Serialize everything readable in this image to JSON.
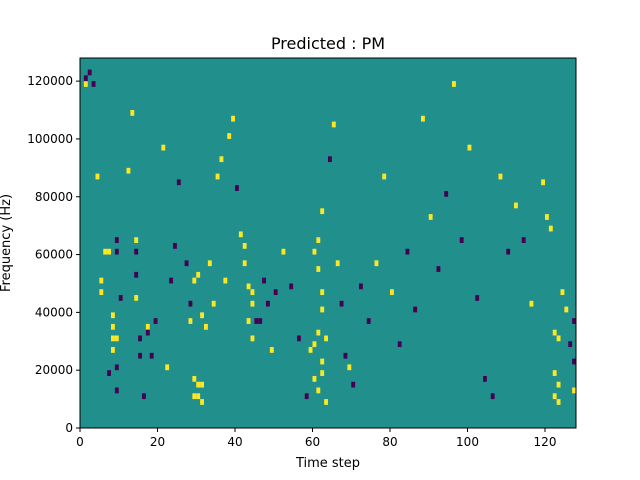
{
  "chart_data": {
    "type": "heatmap",
    "title": "Predicted : PM",
    "xlabel": "Time step",
    "ylabel": "Frequency (Hz)",
    "xlim": [
      0,
      128
    ],
    "ylim": [
      0,
      128000
    ],
    "xticks": [
      "0",
      "20",
      "40",
      "60",
      "80",
      "100",
      "120"
    ],
    "yticks": [
      "0",
      "20000",
      "40000",
      "60000",
      "80000",
      "100000",
      "120000"
    ],
    "grid": false,
    "legend": "none",
    "colormap": "viridis",
    "value_levels": [
      0,
      1,
      2
    ],
    "colors": {
      "background_level_1": "#21908d",
      "low_level_0": "#440154",
      "high_level_2": "#fde725"
    },
    "cells": [
      [
        1,
        118000,
        2
      ],
      [
        1,
        120000,
        0
      ],
      [
        2,
        122000,
        0
      ],
      [
        3,
        118000,
        0
      ],
      [
        6,
        60000,
        2
      ],
      [
        7,
        60000,
        2
      ],
      [
        8,
        38000,
        2
      ],
      [
        8,
        34000,
        2
      ],
      [
        8,
        30000,
        2
      ],
      [
        9,
        30000,
        2
      ],
      [
        8,
        26000,
        2
      ],
      [
        9,
        20000,
        0
      ],
      [
        9,
        60000,
        0
      ],
      [
        9,
        64000,
        0
      ],
      [
        10,
        44000,
        0
      ],
      [
        4,
        86000,
        2
      ],
      [
        5,
        50000,
        2
      ],
      [
        5,
        46000,
        2
      ],
      [
        7,
        18000,
        0
      ],
      [
        9,
        12000,
        0
      ],
      [
        12,
        88000,
        2
      ],
      [
        13,
        108000,
        2
      ],
      [
        14,
        64000,
        2
      ],
      [
        14,
        60000,
        0
      ],
      [
        14,
        52000,
        0
      ],
      [
        14,
        44000,
        2
      ],
      [
        15,
        30000,
        0
      ],
      [
        15,
        24000,
        0
      ],
      [
        16,
        10000,
        0
      ],
      [
        17,
        34000,
        2
      ],
      [
        17,
        32000,
        0
      ],
      [
        18,
        24000,
        0
      ],
      [
        19,
        36000,
        0
      ],
      [
        21,
        96000,
        2
      ],
      [
        22,
        20000,
        2
      ],
      [
        23,
        50000,
        0
      ],
      [
        24,
        62000,
        0
      ],
      [
        25,
        84000,
        0
      ],
      [
        27,
        56000,
        0
      ],
      [
        28,
        42000,
        0
      ],
      [
        29,
        16000,
        2
      ],
      [
        29,
        10000,
        2
      ],
      [
        30,
        14000,
        2
      ],
      [
        30,
        10000,
        2
      ],
      [
        31,
        14000,
        2
      ],
      [
        31,
        8000,
        2
      ],
      [
        28,
        36000,
        2
      ],
      [
        29,
        50000,
        2
      ],
      [
        30,
        52000,
        2
      ],
      [
        31,
        38000,
        2
      ],
      [
        32,
        34000,
        2
      ],
      [
        33,
        56000,
        2
      ],
      [
        34,
        42000,
        2
      ],
      [
        35,
        86000,
        2
      ],
      [
        36,
        92000,
        2
      ],
      [
        37,
        50000,
        2
      ],
      [
        38,
        100000,
        2
      ],
      [
        39,
        106000,
        2
      ],
      [
        40,
        82000,
        0
      ],
      [
        41,
        66000,
        2
      ],
      [
        42,
        62000,
        2
      ],
      [
        42,
        56000,
        2
      ],
      [
        43,
        48000,
        2
      ],
      [
        44,
        46000,
        2
      ],
      [
        44,
        42000,
        2
      ],
      [
        43,
        36000,
        2
      ],
      [
        44,
        30000,
        2
      ],
      [
        45,
        36000,
        0
      ],
      [
        46,
        36000,
        0
      ],
      [
        47,
        50000,
        0
      ],
      [
        48,
        42000,
        0
      ],
      [
        49,
        26000,
        2
      ],
      [
        50,
        46000,
        0
      ],
      [
        52,
        60000,
        2
      ],
      [
        54,
        48000,
        0
      ],
      [
        56,
        30000,
        0
      ],
      [
        58,
        10000,
        0
      ],
      [
        59,
        26000,
        2
      ],
      [
        60,
        28000,
        2
      ],
      [
        61,
        32000,
        2
      ],
      [
        62,
        40000,
        2
      ],
      [
        62,
        46000,
        2
      ],
      [
        61,
        54000,
        2
      ],
      [
        60,
        60000,
        2
      ],
      [
        61,
        64000,
        2
      ],
      [
        62,
        74000,
        2
      ],
      [
        60,
        16000,
        2
      ],
      [
        61,
        12000,
        2
      ],
      [
        62,
        18000,
        2
      ],
      [
        62,
        22000,
        2
      ],
      [
        63,
        30000,
        2
      ],
      [
        63,
        8000,
        2
      ],
      [
        64,
        92000,
        0
      ],
      [
        65,
        104000,
        2
      ],
      [
        66,
        56000,
        2
      ],
      [
        67,
        42000,
        0
      ],
      [
        68,
        24000,
        0
      ],
      [
        69,
        20000,
        2
      ],
      [
        70,
        14000,
        0
      ],
      [
        72,
        48000,
        0
      ],
      [
        74,
        36000,
        0
      ],
      [
        76,
        56000,
        2
      ],
      [
        78,
        86000,
        2
      ],
      [
        80,
        46000,
        2
      ],
      [
        82,
        28000,
        0
      ],
      [
        84,
        60000,
        0
      ],
      [
        86,
        40000,
        0
      ],
      [
        88,
        106000,
        2
      ],
      [
        90,
        72000,
        2
      ],
      [
        92,
        54000,
        0
      ],
      [
        94,
        80000,
        0
      ],
      [
        96,
        118000,
        2
      ],
      [
        98,
        64000,
        0
      ],
      [
        100,
        96000,
        2
      ],
      [
        102,
        44000,
        0
      ],
      [
        104,
        16000,
        0
      ],
      [
        106,
        10000,
        0
      ],
      [
        108,
        86000,
        2
      ],
      [
        110,
        60000,
        0
      ],
      [
        112,
        76000,
        2
      ],
      [
        114,
        64000,
        0
      ],
      [
        116,
        42000,
        2
      ],
      [
        119,
        84000,
        2
      ],
      [
        120,
        72000,
        2
      ],
      [
        121,
        68000,
        2
      ],
      [
        122,
        32000,
        2
      ],
      [
        123,
        30000,
        2
      ],
      [
        122,
        18000,
        2
      ],
      [
        123,
        14000,
        2
      ],
      [
        122,
        10000,
        2
      ],
      [
        123,
        8000,
        2
      ],
      [
        124,
        46000,
        2
      ],
      [
        125,
        40000,
        2
      ],
      [
        126,
        28000,
        0
      ],
      [
        127,
        22000,
        0
      ],
      [
        127,
        36000,
        0
      ],
      [
        127,
        12000,
        2
      ]
    ]
  }
}
